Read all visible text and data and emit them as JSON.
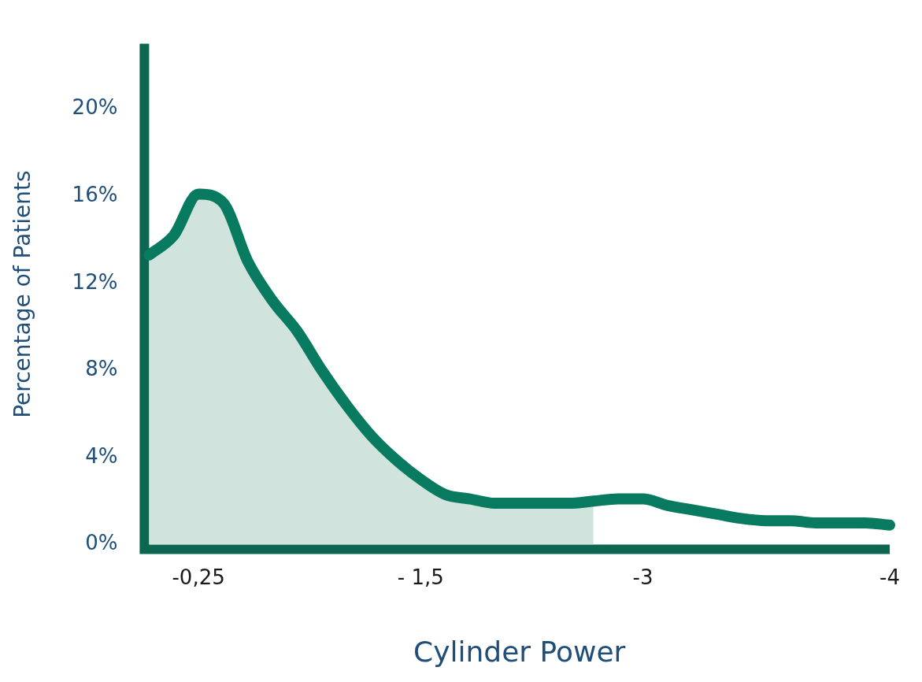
{
  "chart_data": {
    "type": "line",
    "xlabel": "Cylinder Power",
    "ylabel": "Percentage of Patients",
    "categories": [
      null,
      null,
      "-0,25",
      null,
      null,
      null,
      null,
      null,
      null,
      null,
      null,
      "- 1,5",
      null,
      null,
      null,
      null,
      null,
      null,
      null,
      null,
      "-3",
      null,
      null,
      null,
      null,
      null,
      null,
      null,
      null,
      null,
      "-4"
    ],
    "ylim": [
      0,
      23
    ],
    "yticks": [
      {
        "value": 0,
        "label": "0%"
      },
      {
        "value": 4,
        "label": "4%"
      },
      {
        "value": 8,
        "label": "8%"
      },
      {
        "value": 12,
        "label": "12%"
      },
      {
        "value": 16,
        "label": "16%"
      },
      {
        "value": 20,
        "label": "20%"
      }
    ],
    "grid": false,
    "legend": false,
    "marker": "none",
    "line_style": "solid",
    "series": [
      {
        "type": "area",
        "color": "#d0e3dc",
        "values": [
          13.3,
          14.2,
          16.1,
          15.7,
          13.0,
          11.2,
          9.8,
          8.0,
          6.4,
          5.0,
          3.9,
          3.0,
          2.3,
          2.1,
          1.9,
          1.9,
          1.9,
          1.9,
          2.0,
          null,
          null,
          null,
          null,
          null,
          null,
          null,
          null,
          null,
          null,
          null,
          null
        ]
      },
      {
        "type": "line",
        "color": "#077a5f",
        "values": [
          13.3,
          14.2,
          16.1,
          15.7,
          13.0,
          11.2,
          9.8,
          8.0,
          6.4,
          5.0,
          3.9,
          3.0,
          2.3,
          2.1,
          1.9,
          1.9,
          1.9,
          1.9,
          2.0,
          2.1,
          2.1,
          1.8,
          1.6,
          1.4,
          1.2,
          1.1,
          1.1,
          1.0,
          1.0,
          1.0,
          0.9
        ]
      }
    ]
  }
}
